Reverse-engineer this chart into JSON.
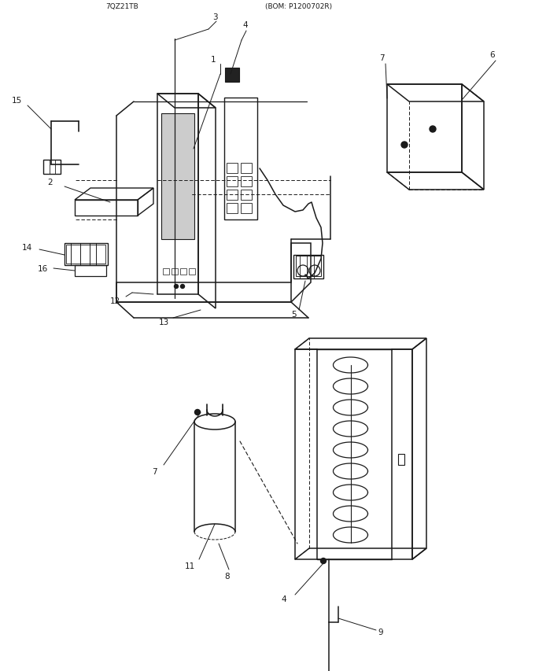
{
  "bg_color": "#ffffff",
  "lc": "#1a1a1a",
  "figsize": [
    6.8,
    8.54
  ],
  "dpi": 100,
  "title_parts": [
    "7QZ21TB",
    "(BOM: P1200702R)"
  ]
}
